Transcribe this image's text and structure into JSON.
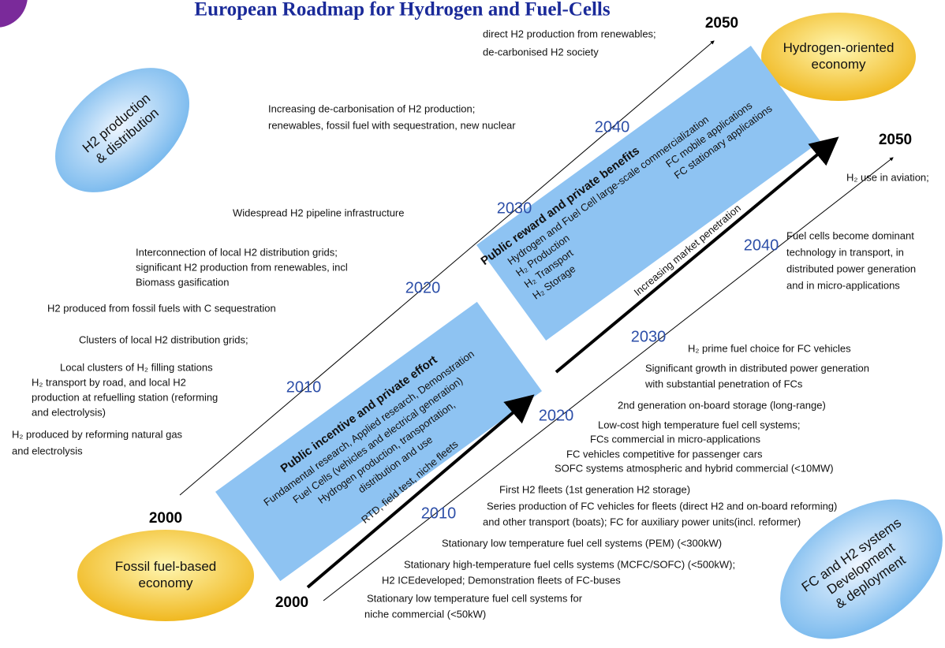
{
  "title": "European Roadmap for Hydrogen and Fuel-Cells",
  "bubbles": {
    "h2_production": [
      "H2 production",
      "& distribution"
    ],
    "hydrogen_economy": [
      "Hydrogen-oriented",
      "economy"
    ],
    "fossil_economy": [
      "Fossil fuel-based",
      "economy"
    ],
    "fc_systems": [
      "FC and H2 systems",
      "Development",
      "& deployment"
    ]
  },
  "upper_track": {
    "years": [
      "2000",
      "2010",
      "2020",
      "2030",
      "2040",
      "2050"
    ],
    "notes": [
      [
        "direct H2 production from renewables;",
        "de-carbonised H2 society"
      ],
      [
        "Increasing de-carbonisation of H2 production;",
        "renewables, fossil fuel with sequestration, new nuclear"
      ],
      [
        "Widespread H2 pipeline infrastructure"
      ],
      [
        "Interconnection of local H2 distribution grids;",
        "significant H2 production from renewables, incl",
        "Biomass gasification"
      ],
      [
        "H2 produced from fossil fuels with C sequestration"
      ],
      [
        "Clusters of local H2 distribution grids;"
      ],
      [
        "Local clusters of H₂ filling stations",
        "H₂ transport by road, and local H2",
        "production at refuelling station (reforming",
        "and electrolysis)"
      ],
      [
        "H₂ produced by reforming natural gas",
        "and electrolysis"
      ]
    ]
  },
  "lower_track": {
    "years": [
      "2000",
      "2010",
      "2020",
      "2030",
      "2040",
      "2050"
    ],
    "arrow_labels": [
      "RTD, field test, niche fleets",
      "Increasing market penetration"
    ],
    "notes": [
      [
        "H₂ use in aviation;"
      ],
      [
        "Fuel cells become dominant",
        "technology in transport, in",
        "distributed power generation",
        "and in micro-applications"
      ],
      [
        "H₂ prime fuel choice for FC vehicles"
      ],
      [
        "Significant growth in distributed power generation",
        "with substantial penetration of FCs"
      ],
      [
        "2nd generation on-board storage (long-range)"
      ],
      [
        "Low-cost high temperature fuel cell systems;",
        "FCs commercial in micro-applications"
      ],
      [
        "FC vehicles competitive for passenger cars"
      ],
      [
        "SOFC systems atmospheric and hybrid commercial (<10MW)"
      ],
      [
        "First H2 fleets (1st generation H2 storage)"
      ],
      [
        "Series production of FC vehicles for fleets (direct H2 and on-board reforming)",
        "and other transport (boats); FC for auxiliary power units(incl. reformer)"
      ],
      [
        "Stationary low temperature fuel cell systems (PEM) (<300kW)"
      ],
      [
        "Stationary high-temperature fuel cells systems (MCFC/SOFC) (<500kW);",
        "H2 ICEdeveloped; Demonstration fleets of FC-buses"
      ],
      [
        "Stationary low temperature fuel cell systems for",
        "niche commercial (<50kW)"
      ]
    ]
  },
  "boxes": [
    {
      "heading": "Public incentive and private effort",
      "lines": [
        "Fundamental research, Applied research, Demonstration",
        "Fuel Cells (vehicles and electrical generation)",
        "Hydrogen production, transportation,",
        "distribution and use"
      ]
    },
    {
      "heading": "Public reward and private benefits",
      "lines": [
        "Hydrogen and Fuel Cell large-scale commercialization",
        "H₂ Production",
        "H₂ Transport",
        "H₂ Storage"
      ],
      "side_lines": [
        "FC mobile applications",
        "FC stationary  applications"
      ]
    }
  ]
}
